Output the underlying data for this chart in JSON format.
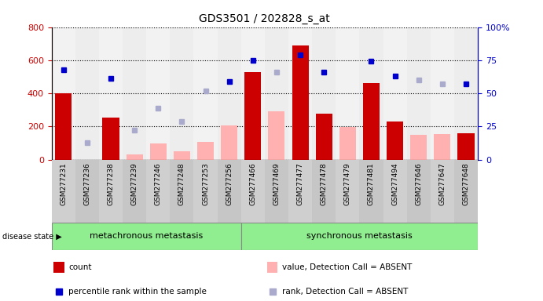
{
  "title": "GDS3501 / 202828_s_at",
  "samples": [
    "GSM277231",
    "GSM277236",
    "GSM277238",
    "GSM277239",
    "GSM277246",
    "GSM277248",
    "GSM277253",
    "GSM277256",
    "GSM277466",
    "GSM277469",
    "GSM277477",
    "GSM277478",
    "GSM277479",
    "GSM277481",
    "GSM277494",
    "GSM277646",
    "GSM277647",
    "GSM277648"
  ],
  "count": [
    400,
    null,
    255,
    null,
    null,
    null,
    null,
    null,
    530,
    null,
    690,
    275,
    null,
    460,
    230,
    null,
    null,
    160
  ],
  "count_absent": [
    null,
    null,
    null,
    30,
    95,
    50,
    105,
    205,
    null,
    290,
    null,
    null,
    195,
    null,
    null,
    150,
    155,
    null
  ],
  "percentile_rank": [
    68,
    null,
    61,
    null,
    null,
    null,
    null,
    59,
    75,
    null,
    79,
    66,
    null,
    74,
    63,
    null,
    null,
    57
  ],
  "rank_absent": [
    null,
    13,
    null,
    22,
    39,
    29,
    52,
    null,
    null,
    66,
    null,
    null,
    null,
    null,
    null,
    60,
    57,
    null
  ],
  "group1_count": 8,
  "group1_label": "metachronous metastasis",
  "group2_label": "synchronous metastasis",
  "ylim_left": [
    0,
    800
  ],
  "ylim_right": [
    0,
    100
  ],
  "yticks_left": [
    0,
    200,
    400,
    600,
    800
  ],
  "yticks_right": [
    0,
    25,
    50,
    75,
    100
  ],
  "bar_color_count": "#cc0000",
  "bar_color_absent": "#ffb0b0",
  "dot_color_rank": "#0000cc",
  "dot_color_rank_absent": "#aaaacc",
  "group_bg": "#90ee90",
  "tick_bg": "#cccccc",
  "legend_items": [
    {
      "label": "count",
      "color": "#cc0000",
      "type": "bar"
    },
    {
      "label": "percentile rank within the sample",
      "color": "#0000cc",
      "type": "dot"
    },
    {
      "label": "value, Detection Call = ABSENT",
      "color": "#ffb0b0",
      "type": "bar"
    },
    {
      "label": "rank, Detection Call = ABSENT",
      "color": "#aaaacc",
      "type": "dot"
    }
  ]
}
